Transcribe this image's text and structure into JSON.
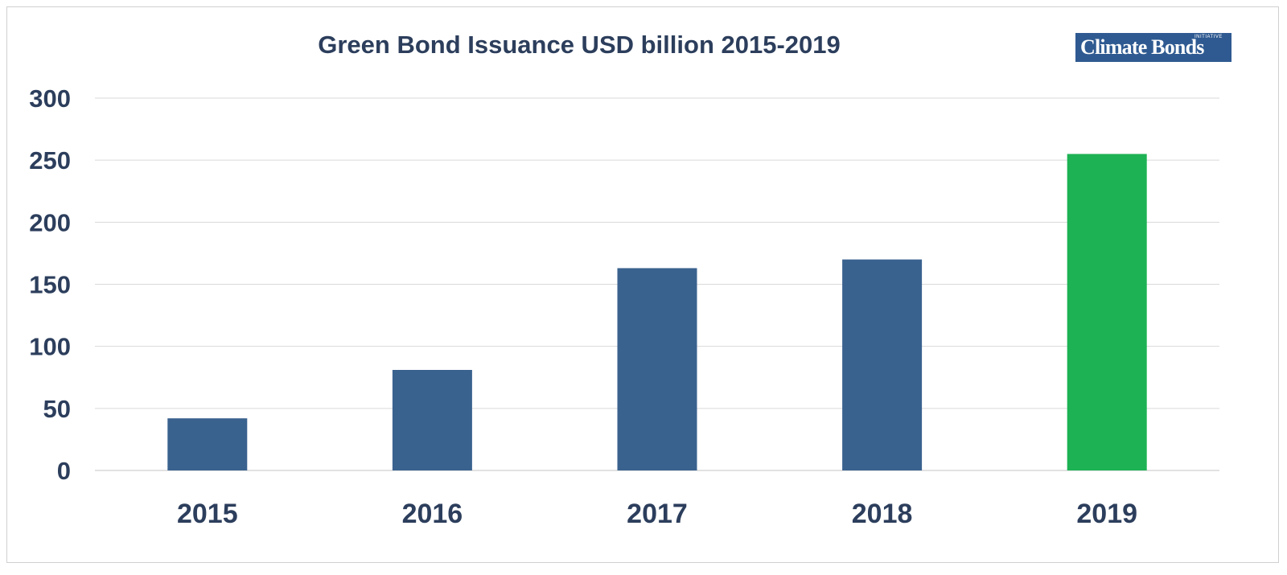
{
  "chart_data": {
    "type": "bar",
    "title": "Green Bond Issuance USD billion 2015-2019",
    "categories": [
      "2015",
      "2016",
      "2017",
      "2018",
      "2019"
    ],
    "values": [
      42,
      81,
      163,
      170,
      255
    ],
    "bar_colors": [
      "#3a628f",
      "#3a628f",
      "#3a628f",
      "#3a628f",
      "#1db254"
    ],
    "xlabel": "",
    "ylabel": "",
    "ylim": [
      0,
      300
    ],
    "yticks": [
      0,
      50,
      100,
      150,
      200,
      250,
      300
    ],
    "grid": true,
    "legend": "none"
  },
  "logo": {
    "text": "Climate Bonds",
    "small_text": "INITIATIVE",
    "color": "#2f5a91"
  },
  "colors": {
    "text": "#2c3e5c",
    "grid": "#d9d9d9"
  }
}
